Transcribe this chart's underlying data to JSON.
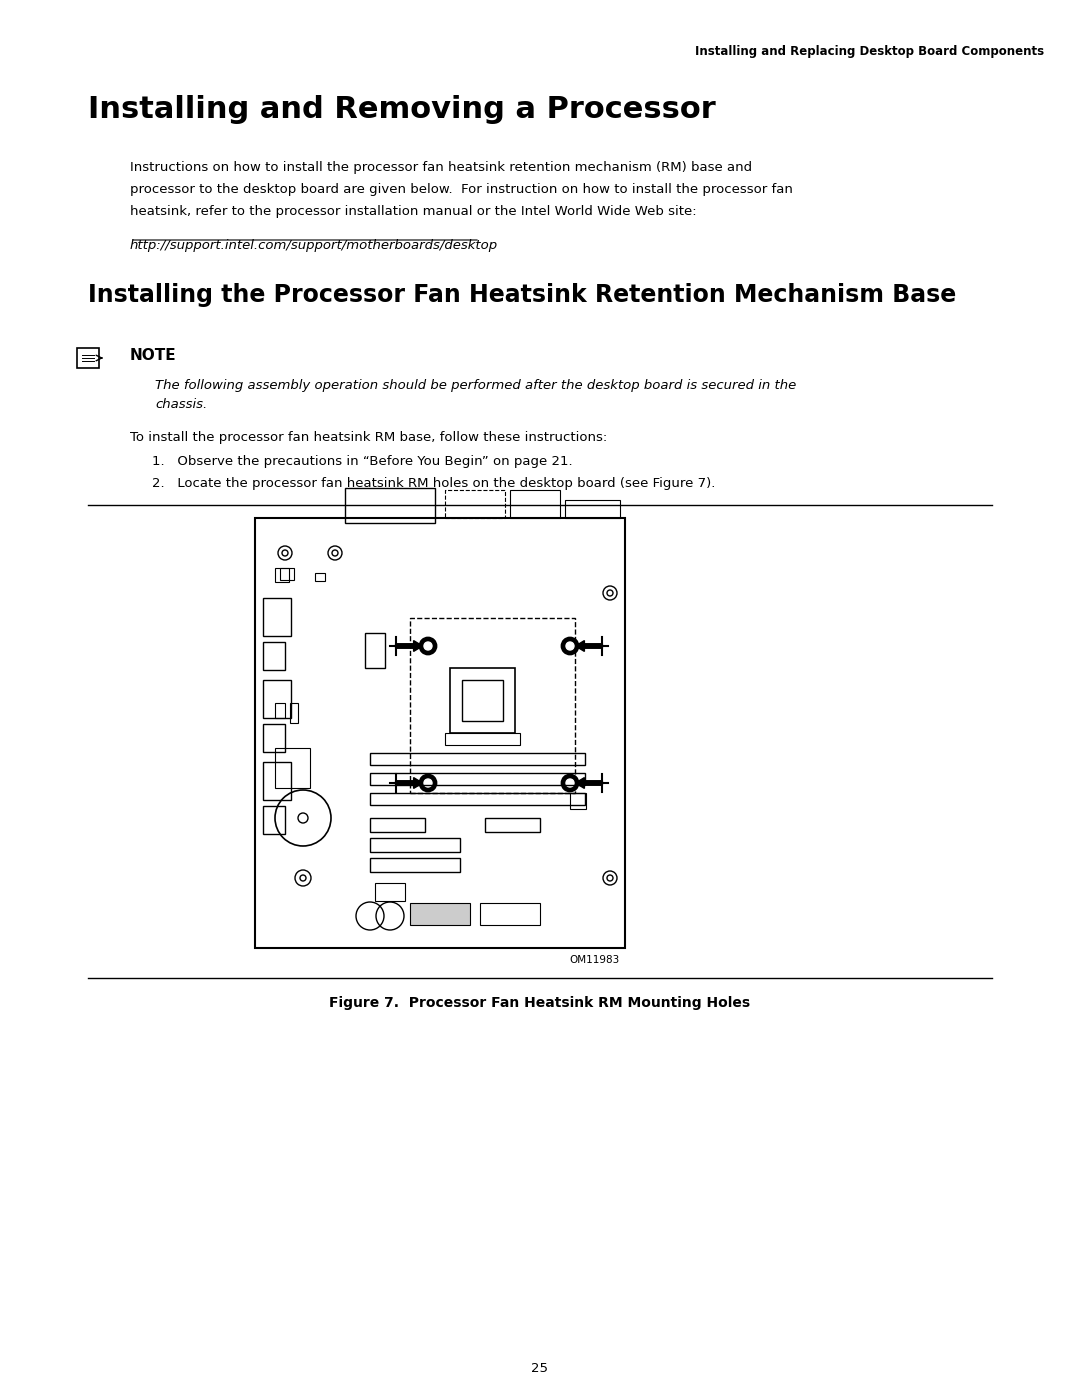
{
  "page_header": "Installing and Replacing Desktop Board Components",
  "main_title": "Installing and Removing a Processor",
  "section_title": "Installing the Processor Fan Heatsink Retention Mechanism Base",
  "body_text_1": "Instructions on how to install the processor fan heatsink retention mechanism (RM) base and\nprocessor to the desktop board are given below.  For instruction on how to install the processor fan\nheatsink, refer to the processor installation manual or the Intel World Wide Web site:",
  "url": "http://support.intel.com/support/motherboards/desktop",
  "note_label": "NOTE",
  "note_italic": "The following assembly operation should be performed after the desktop board is secured in the\nchassis.",
  "install_intro": "To install the processor fan heatsink RM base, follow these instructions:",
  "step1": "Observe the precautions in “Before You Begin” on page 21.",
  "step2": "Locate the processor fan heatsink RM holes on the desktop board (see Figure 7).",
  "figure_caption": "Figure 7.  Processor Fan Heatsink RM Mounting Holes",
  "figure_id": "OM11983",
  "page_number": "25",
  "bg_color": "#ffffff",
  "text_color": "#000000"
}
